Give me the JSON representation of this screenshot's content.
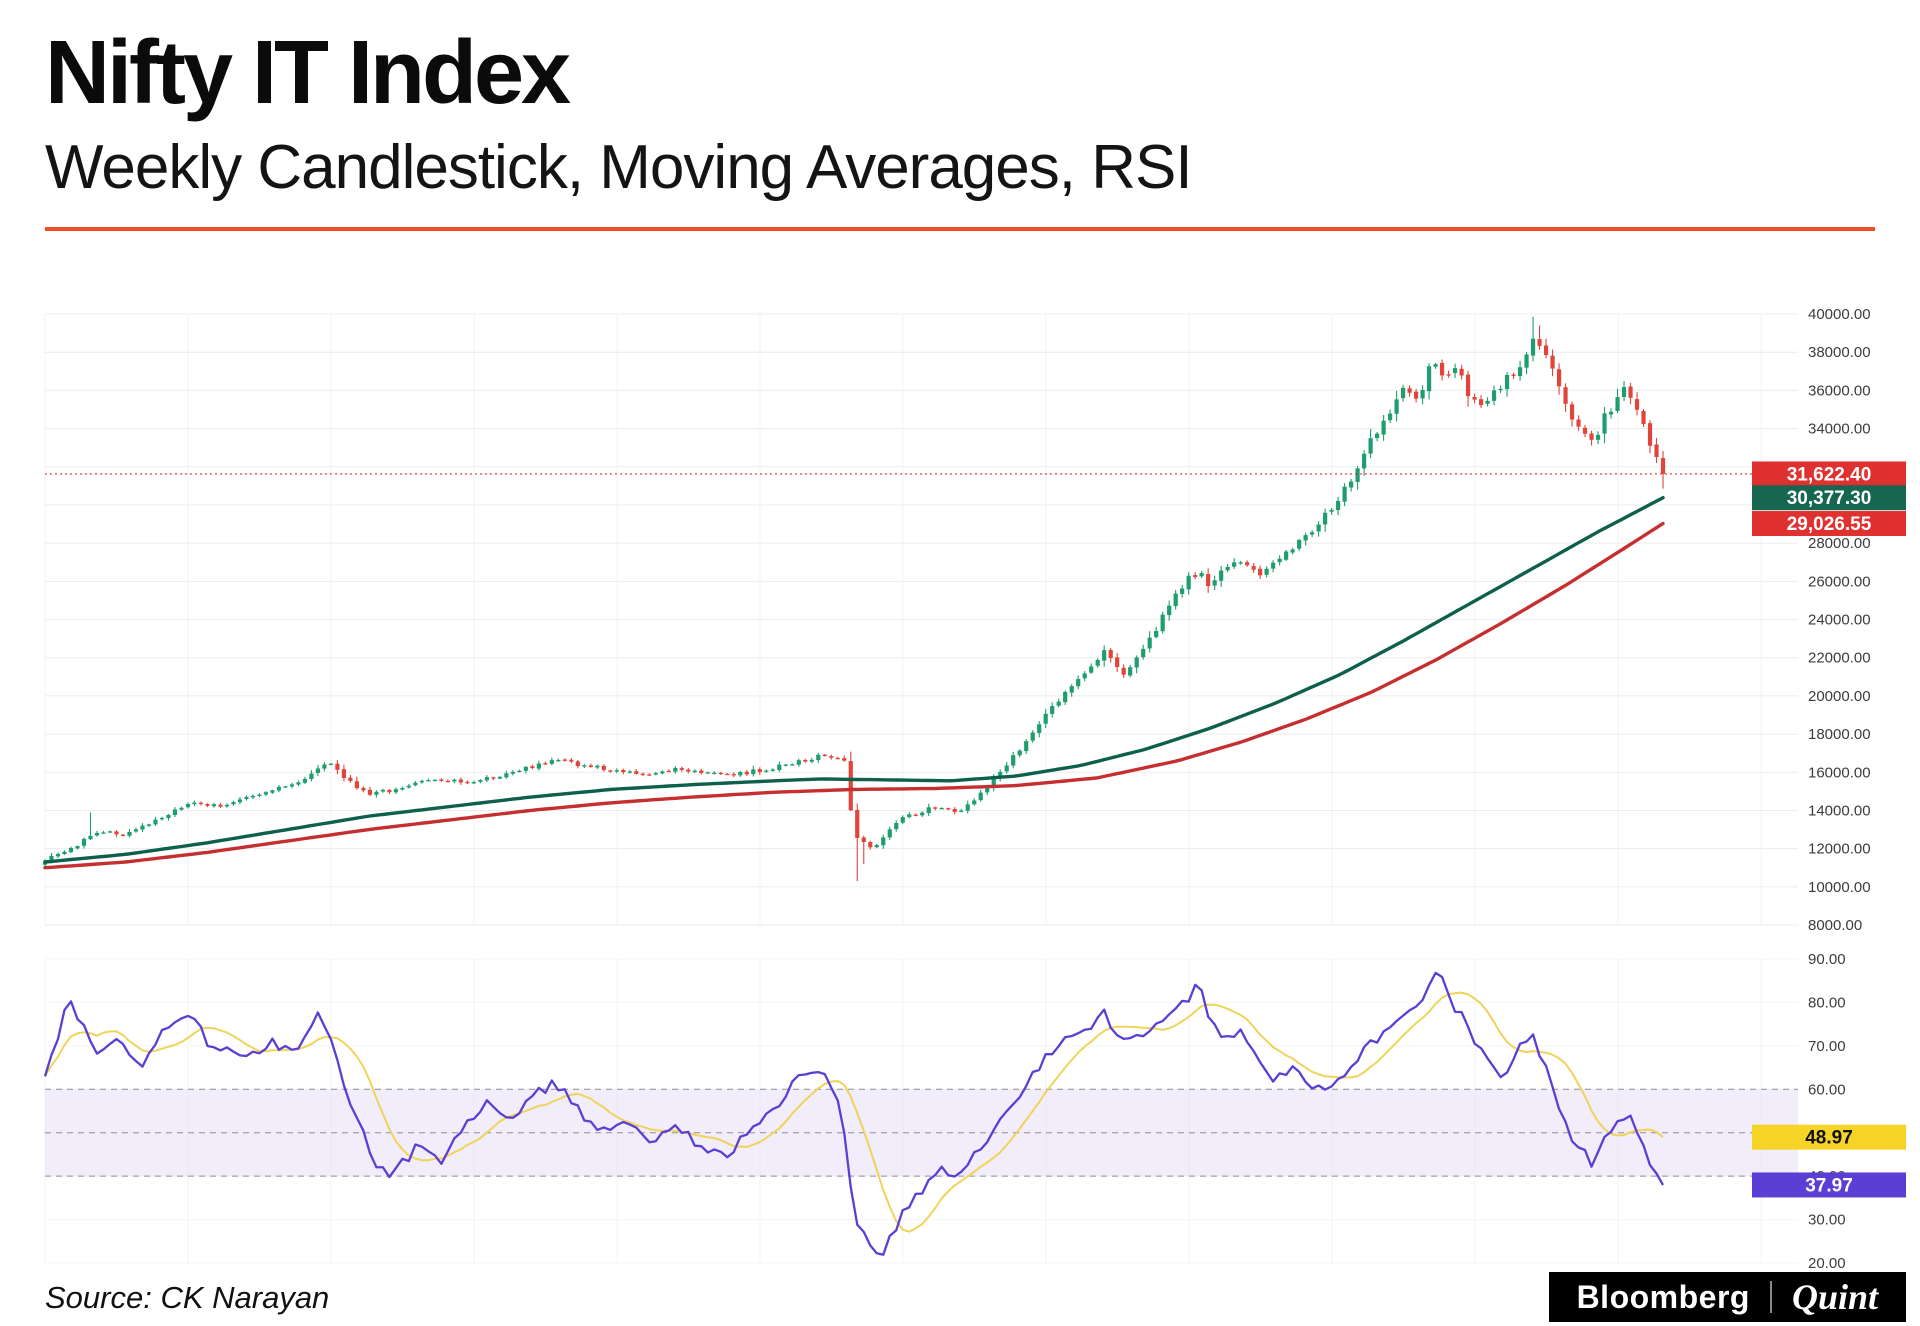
{
  "header": {
    "title": "Nifty IT Index",
    "subtitle": "Weekly Candlestick, Moving Averages, RSI"
  },
  "theme": {
    "accent_rule": "#ee4d22"
  },
  "footer": {
    "source": "Source: CK Narayan",
    "brand_left": "Bloomberg",
    "brand_right": "Quint"
  },
  "chart_data": {
    "type": "candlestick",
    "panels": [
      "price",
      "rsi"
    ],
    "title": "Nifty IT Index",
    "subtitle": "Weekly Candlestick, Moving Averages, RSI",
    "price_axis": {
      "min": 8000,
      "max": 40000,
      "step": 2000,
      "grid": true
    },
    "rsi_axis": {
      "min": 20,
      "max": 90,
      "ticks": [
        90,
        80,
        70,
        60,
        50,
        40,
        30,
        20
      ]
    },
    "n_candles": 250,
    "close_keypoints": [
      [
        0,
        11400
      ],
      [
        0.02,
        12150
      ],
      [
        0.03,
        12900
      ],
      [
        0.05,
        12750
      ],
      [
        0.07,
        13550
      ],
      [
        0.09,
        14350
      ],
      [
        0.11,
        14250
      ],
      [
        0.13,
        14750
      ],
      [
        0.15,
        15300
      ],
      [
        0.165,
        15900
      ],
      [
        0.175,
        16450
      ],
      [
        0.19,
        15400
      ],
      [
        0.2,
        14800
      ],
      [
        0.22,
        15200
      ],
      [
        0.24,
        15600
      ],
      [
        0.26,
        15450
      ],
      [
        0.28,
        15800
      ],
      [
        0.3,
        16300
      ],
      [
        0.315,
        16650
      ],
      [
        0.33,
        16400
      ],
      [
        0.35,
        16150
      ],
      [
        0.37,
        15800
      ],
      [
        0.39,
        16200
      ],
      [
        0.41,
        16000
      ],
      [
        0.43,
        15900
      ],
      [
        0.45,
        16250
      ],
      [
        0.47,
        16600
      ],
      [
        0.483,
        16950
      ],
      [
        0.494,
        16700
      ],
      [
        0.5,
        12700
      ],
      [
        0.512,
        11900
      ],
      [
        0.525,
        13400
      ],
      [
        0.54,
        13900
      ],
      [
        0.553,
        14250
      ],
      [
        0.565,
        13950
      ],
      [
        0.58,
        15000
      ],
      [
        0.6,
        17000
      ],
      [
        0.615,
        18600
      ],
      [
        0.63,
        20100
      ],
      [
        0.645,
        21500
      ],
      [
        0.655,
        22400
      ],
      [
        0.665,
        21100
      ],
      [
        0.675,
        21900
      ],
      [
        0.69,
        24000
      ],
      [
        0.705,
        26000
      ],
      [
        0.713,
        26550
      ],
      [
        0.72,
        25800
      ],
      [
        0.73,
        26700
      ],
      [
        0.74,
        27050
      ],
      [
        0.75,
        26300
      ],
      [
        0.765,
        27400
      ],
      [
        0.78,
        28300
      ],
      [
        0.795,
        29800
      ],
      [
        0.81,
        31800
      ],
      [
        0.825,
        34200
      ],
      [
        0.84,
        36100
      ],
      [
        0.848,
        35400
      ],
      [
        0.856,
        37400
      ],
      [
        0.864,
        36700
      ],
      [
        0.872,
        37300
      ],
      [
        0.88,
        35600
      ],
      [
        0.888,
        35100
      ],
      [
        0.9,
        36200
      ],
      [
        0.912,
        37400
      ],
      [
        0.92,
        38500
      ],
      [
        0.928,
        38000
      ],
      [
        0.934,
        36500
      ],
      [
        0.942,
        34800
      ],
      [
        0.95,
        33900
      ],
      [
        0.956,
        33300
      ],
      [
        0.964,
        34600
      ],
      [
        0.972,
        35500
      ],
      [
        0.978,
        36200
      ],
      [
        0.984,
        35200
      ],
      [
        0.99,
        33800
      ],
      [
        0.995,
        32600
      ],
      [
        1,
        31622.4
      ]
    ],
    "ma_fast_keypoints": [
      [
        0,
        11300
      ],
      [
        0.05,
        11700
      ],
      [
        0.1,
        12300
      ],
      [
        0.15,
        13000
      ],
      [
        0.2,
        13700
      ],
      [
        0.25,
        14200
      ],
      [
        0.3,
        14700
      ],
      [
        0.35,
        15100
      ],
      [
        0.4,
        15350
      ],
      [
        0.45,
        15550
      ],
      [
        0.48,
        15650
      ],
      [
        0.52,
        15600
      ],
      [
        0.56,
        15550
      ],
      [
        0.6,
        15800
      ],
      [
        0.64,
        16350
      ],
      [
        0.68,
        17200
      ],
      [
        0.72,
        18300
      ],
      [
        0.76,
        19600
      ],
      [
        0.8,
        21100
      ],
      [
        0.84,
        22900
      ],
      [
        0.88,
        24800
      ],
      [
        0.92,
        26700
      ],
      [
        0.96,
        28600
      ],
      [
        1,
        30377.3
      ]
    ],
    "ma_slow_keypoints": [
      [
        0,
        11000
      ],
      [
        0.05,
        11300
      ],
      [
        0.1,
        11800
      ],
      [
        0.15,
        12400
      ],
      [
        0.2,
        13000
      ],
      [
        0.25,
        13500
      ],
      [
        0.3,
        14000
      ],
      [
        0.35,
        14400
      ],
      [
        0.4,
        14700
      ],
      [
        0.45,
        14950
      ],
      [
        0.5,
        15100
      ],
      [
        0.55,
        15150
      ],
      [
        0.6,
        15300
      ],
      [
        0.65,
        15700
      ],
      [
        0.7,
        16600
      ],
      [
        0.74,
        17600
      ],
      [
        0.78,
        18800
      ],
      [
        0.82,
        20200
      ],
      [
        0.86,
        21900
      ],
      [
        0.9,
        23800
      ],
      [
        0.94,
        25800
      ],
      [
        0.97,
        27400
      ],
      [
        1,
        29026.55
      ]
    ],
    "rsi_keypoints": [
      [
        0,
        63
      ],
      [
        0.015,
        81
      ],
      [
        0.03,
        69
      ],
      [
        0.045,
        72
      ],
      [
        0.06,
        66
      ],
      [
        0.075,
        74
      ],
      [
        0.09,
        77
      ],
      [
        0.1,
        71
      ],
      [
        0.12,
        67
      ],
      [
        0.14,
        71
      ],
      [
        0.155,
        68
      ],
      [
        0.17,
        79
      ],
      [
        0.19,
        55
      ],
      [
        0.205,
        43
      ],
      [
        0.215,
        40
      ],
      [
        0.23,
        47
      ],
      [
        0.245,
        44
      ],
      [
        0.26,
        52
      ],
      [
        0.275,
        57
      ],
      [
        0.29,
        53
      ],
      [
        0.3,
        58
      ],
      [
        0.315,
        62
      ],
      [
        0.33,
        55
      ],
      [
        0.345,
        50
      ],
      [
        0.36,
        53
      ],
      [
        0.375,
        48
      ],
      [
        0.39,
        52
      ],
      [
        0.405,
        47
      ],
      [
        0.42,
        44
      ],
      [
        0.435,
        50
      ],
      [
        0.45,
        55
      ],
      [
        0.465,
        62
      ],
      [
        0.48,
        65
      ],
      [
        0.492,
        55
      ],
      [
        0.5,
        30
      ],
      [
        0.51,
        24
      ],
      [
        0.518,
        22
      ],
      [
        0.53,
        31
      ],
      [
        0.545,
        38
      ],
      [
        0.555,
        42
      ],
      [
        0.565,
        40
      ],
      [
        0.58,
        48
      ],
      [
        0.595,
        55
      ],
      [
        0.61,
        63
      ],
      [
        0.625,
        70
      ],
      [
        0.64,
        73
      ],
      [
        0.655,
        78
      ],
      [
        0.665,
        70
      ],
      [
        0.675,
        72
      ],
      [
        0.69,
        76
      ],
      [
        0.705,
        80
      ],
      [
        0.713,
        86
      ],
      [
        0.72,
        76
      ],
      [
        0.73,
        72
      ],
      [
        0.74,
        74
      ],
      [
        0.75,
        66
      ],
      [
        0.76,
        62
      ],
      [
        0.77,
        65
      ],
      [
        0.78,
        62
      ],
      [
        0.79,
        60
      ],
      [
        0.8,
        63
      ],
      [
        0.81,
        67
      ],
      [
        0.82,
        71
      ],
      [
        0.83,
        74
      ],
      [
        0.84,
        78
      ],
      [
        0.85,
        81
      ],
      [
        0.856,
        84
      ],
      [
        0.862,
        87
      ],
      [
        0.87,
        80
      ],
      [
        0.878,
        75
      ],
      [
        0.886,
        70
      ],
      [
        0.894,
        65
      ],
      [
        0.9,
        62
      ],
      [
        0.906,
        66
      ],
      [
        0.912,
        70
      ],
      [
        0.92,
        72
      ],
      [
        0.928,
        65
      ],
      [
        0.934,
        58
      ],
      [
        0.942,
        50
      ],
      [
        0.95,
        46
      ],
      [
        0.956,
        43
      ],
      [
        0.964,
        48
      ],
      [
        0.972,
        52
      ],
      [
        0.978,
        55
      ],
      [
        0.984,
        50
      ],
      [
        0.99,
        45
      ],
      [
        0.995,
        41
      ],
      [
        1,
        37.97
      ]
    ],
    "rsi_ma_window": 9,
    "rsi_band": {
      "upper": 60,
      "mid": 50,
      "lower": 40
    },
    "wick_overrides": [
      {
        "frac": 0.03,
        "high": 13900
      },
      {
        "frac": 0.502,
        "low": 10300
      },
      {
        "frac": 0.506,
        "low": 11200
      },
      {
        "frac": 0.92,
        "high": 39850
      },
      {
        "frac": 0.924,
        "high": 39400
      },
      {
        "frac": 1,
        "low": 30850
      }
    ],
    "last_values": {
      "price": 31622.4,
      "ma_fast": 30377.3,
      "ma_slow": 29026.55,
      "rsi_ma": 48.97,
      "rsi": 37.97
    },
    "labels": {
      "last_price": "31,622.40",
      "ma_fast": "30,377.30",
      "ma_slow": "29,026.55",
      "rsi_ma": "48.97",
      "rsi": "37.97"
    },
    "colors": {
      "up": "#1e9e6c",
      "down": "#e0443a",
      "ma_fast": "#0e5f4b",
      "ma_slow": "#c62f2f",
      "rsi": "#5b3fd4",
      "rsi_ma": "#f0d35a",
      "band_fill": "#e7def5",
      "box_red": "#e03131",
      "box_green": "#17664f",
      "box_yellow": "#f5d327",
      "box_purple": "#5b3fd4",
      "accent": "#ee4d22",
      "grid": "#ececec",
      "grid_vertical": "#f2f3f5",
      "dashed": "#8f8f8f",
      "last_line": "#e03131",
      "axis_text": "#3c3c3c"
    }
  }
}
